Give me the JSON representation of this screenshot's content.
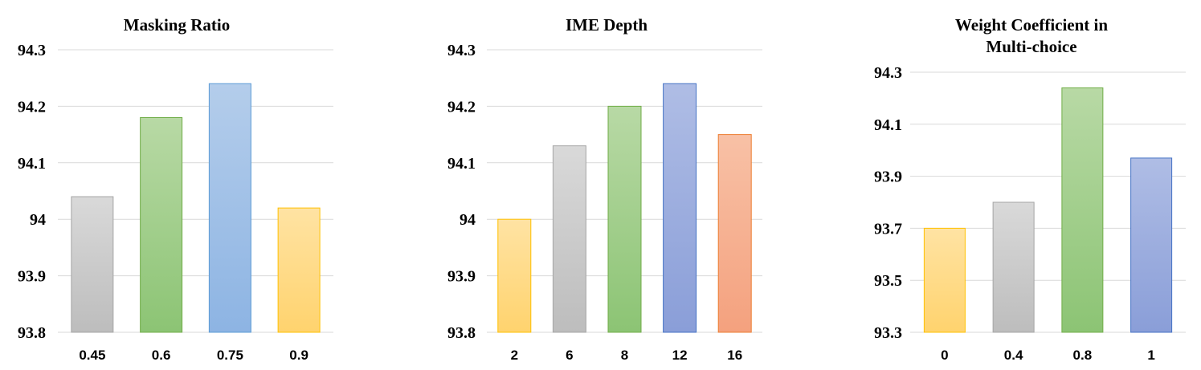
{
  "chart_data": [
    {
      "type": "bar",
      "title_lines": [
        "Masking Ratio"
      ],
      "categories": [
        "0.45",
        "0.6",
        "0.75",
        "0.9"
      ],
      "values": [
        94.04,
        94.18,
        94.24,
        94.02
      ],
      "ylim": [
        93.8,
        94.3
      ],
      "yticks": [
        93.8,
        93.9,
        94,
        94.1,
        94.2,
        94.3
      ],
      "ytick_labels": [
        "93.8",
        "93.9",
        "94",
        "94.1",
        "94.2",
        "94.3"
      ],
      "grid": true,
      "colors": [
        "gray",
        "green",
        "blue",
        "yellow"
      ]
    },
    {
      "type": "bar",
      "title_lines": [
        "IME Depth"
      ],
      "categories": [
        "2",
        "6",
        "8",
        "12",
        "16"
      ],
      "values": [
        94.0,
        94.13,
        94.2,
        94.24,
        94.15
      ],
      "ylim": [
        93.8,
        94.3
      ],
      "yticks": [
        93.8,
        93.9,
        94,
        94.1,
        94.2,
        94.3
      ],
      "ytick_labels": [
        "93.8",
        "93.9",
        "94",
        "94.1",
        "94.2",
        "94.3"
      ],
      "grid": true,
      "colors": [
        "yellow",
        "gray",
        "green",
        "purple",
        "orange"
      ]
    },
    {
      "type": "bar",
      "title_lines": [
        "Weight Coefficient in",
        "Multi-choice"
      ],
      "categories": [
        "0",
        "0.4",
        "0.8",
        "1"
      ],
      "values": [
        93.7,
        93.8,
        94.24,
        93.97
      ],
      "ylim": [
        93.3,
        94.3
      ],
      "yticks": [
        93.3,
        93.5,
        93.7,
        93.9,
        94.1,
        94.3
      ],
      "ytick_labels": [
        "93.3",
        "93.5",
        "93.7",
        "93.9",
        "94.1",
        "94.3"
      ],
      "grid": true,
      "colors": [
        "yellow",
        "gray",
        "green",
        "purple"
      ]
    }
  ],
  "palette": {
    "gray": {
      "top": "#d9d9d9",
      "bottom": "#bdbdbd",
      "stroke": "#a5a5a5"
    },
    "green": {
      "top": "#b8d9a5",
      "bottom": "#8cc474",
      "stroke": "#70ad47"
    },
    "blue": {
      "top": "#b4cdeb",
      "bottom": "#8db4e3",
      "stroke": "#5b9bd5"
    },
    "yellow": {
      "top": "#ffe3a3",
      "bottom": "#ffd36e",
      "stroke": "#ffc000"
    },
    "purple": {
      "top": "#afbde5",
      "bottom": "#8a9ed8",
      "stroke": "#4472c4"
    },
    "orange": {
      "top": "#f8c1a6",
      "bottom": "#f4a17e",
      "stroke": "#ed7d31"
    }
  }
}
